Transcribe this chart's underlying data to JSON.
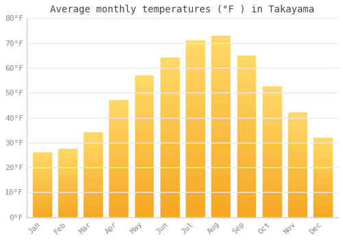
{
  "title": "Average monthly temperatures (°F ) in Takayama",
  "months": [
    "Jan",
    "Feb",
    "Mar",
    "Apr",
    "May",
    "Jun",
    "Jul",
    "Aug",
    "Sep",
    "Oct",
    "Nov",
    "Dec"
  ],
  "values": [
    26,
    27.5,
    34,
    47,
    57,
    64,
    71,
    73,
    65,
    52.5,
    42,
    32
  ],
  "bar_color_top": "#FFD966",
  "bar_color_bottom": "#F5A623",
  "background_color": "#ffffff",
  "grid_color": "#e8e8e8",
  "ylim": [
    0,
    80
  ],
  "yticks": [
    0,
    10,
    20,
    30,
    40,
    50,
    60,
    70,
    80
  ],
  "ytick_labels": [
    "0°F",
    "10°F",
    "20°F",
    "30°F",
    "40°F",
    "50°F",
    "60°F",
    "70°F",
    "80°F"
  ],
  "title_fontsize": 10,
  "tick_fontsize": 8,
  "bar_width": 0.72,
  "font_color": "#888888",
  "spine_color": "#cccccc"
}
